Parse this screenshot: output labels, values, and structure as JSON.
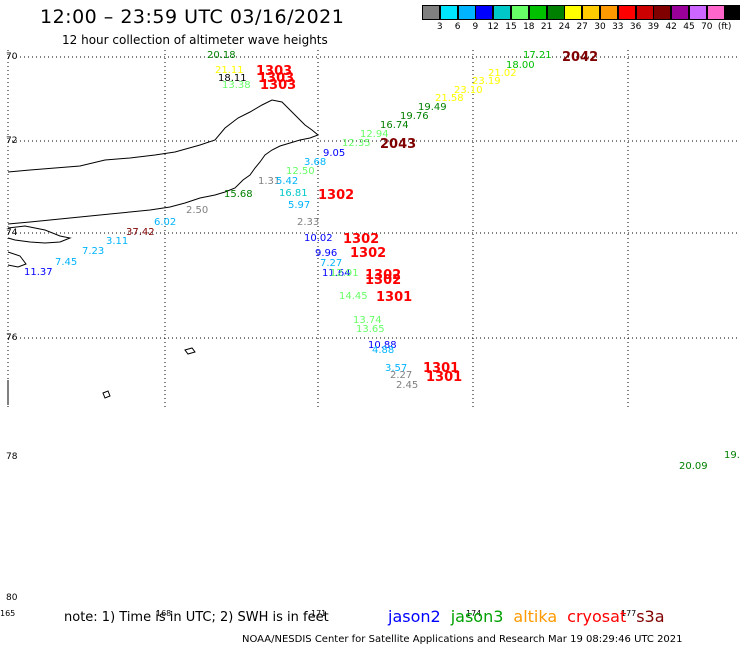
{
  "header": {
    "title": "12:00 – 23:59 UTC 03/16/2021",
    "subtitle": "12 hour collection of altimeter wave heights"
  },
  "scale": {
    "colors": [
      "#808080",
      "#00e5ff",
      "#00b4ff",
      "#0000ff",
      "#00c8c8",
      "#66ff66",
      "#00c000",
      "#008000",
      "#ffff00",
      "#ffcc00",
      "#ff9900",
      "#ff0000",
      "#cc0000",
      "#800000",
      "#990099",
      "#cc66ff",
      "#ff66cc",
      "#000000"
    ],
    "labels": [
      "3",
      "6",
      "9",
      "12",
      "15",
      "18",
      "21",
      "24",
      "27",
      "30",
      "33",
      "36",
      "39",
      "42",
      "45",
      "70",
      "(ft)"
    ]
  },
  "axes": {
    "lat_labels": [
      "70",
      "72",
      "74",
      "76",
      "78",
      "80"
    ],
    "lon_labels": [
      "165",
      "168",
      "171",
      "174",
      "177"
    ]
  },
  "observations": [
    {
      "text": "20.18",
      "color": "#008000"
    },
    {
      "text": "21.11",
      "color": "#ffff00"
    },
    {
      "text": "18.11",
      "color": "#000000"
    },
    {
      "text": "13.38",
      "color": "#66ff66"
    },
    {
      "text": "17.21",
      "color": "#00c000"
    },
    {
      "text": "18.00",
      "color": "#00c000"
    },
    {
      "text": "21.02",
      "color": "#ffff00"
    },
    {
      "text": "23.19",
      "color": "#ffff00"
    },
    {
      "text": "23.10",
      "color": "#ffff00"
    },
    {
      "text": "21.58",
      "color": "#ffff00"
    },
    {
      "text": "19.49",
      "color": "#008000"
    },
    {
      "text": "19.76",
      "color": "#008000"
    },
    {
      "text": "16.74",
      "color": "#008000"
    },
    {
      "text": "12.94",
      "color": "#66ff66"
    },
    {
      "text": "12.35",
      "color": "#66ff66"
    },
    {
      "text": "9.05",
      "color": "#0000ff"
    },
    {
      "text": "3.68",
      "color": "#00b4ff"
    },
    {
      "text": "12.50",
      "color": "#66ff66"
    },
    {
      "text": "1.31",
      "color": "#808080"
    },
    {
      "text": "5.42",
      "color": "#00b4ff"
    },
    {
      "text": "15.68",
      "color": "#008000"
    },
    {
      "text": "16.81",
      "color": "#00c8c8"
    },
    {
      "text": "5.97",
      "color": "#00b4ff"
    },
    {
      "text": "2.50",
      "color": "#808080"
    },
    {
      "text": "6.02",
      "color": "#00b4ff"
    },
    {
      "text": "2.33",
      "color": "#808080"
    },
    {
      "text": "37.42",
      "color": "#800000"
    },
    {
      "text": "10.02",
      "color": "#0000ff"
    },
    {
      "text": "3.11",
      "color": "#00b4ff"
    },
    {
      "text": "7.23",
      "color": "#00b4ff"
    },
    {
      "text": "7.45",
      "color": "#00b4ff"
    },
    {
      "text": "11.37",
      "color": "#0000ff"
    },
    {
      "text": "9.96",
      "color": "#0000ff"
    },
    {
      "text": "7.27",
      "color": "#00b4ff"
    },
    {
      "text": "11.64",
      "color": "#0000ff"
    },
    {
      "text": "12.91",
      "color": "#66ff66"
    },
    {
      "text": "14.45",
      "color": "#66ff66"
    },
    {
      "text": "13.74",
      "color": "#66ff66"
    },
    {
      "text": "13.65",
      "color": "#66ff66"
    },
    {
      "text": "10.88",
      "color": "#0000ff"
    },
    {
      "text": "4.88",
      "color": "#00b4ff"
    },
    {
      "text": "3.57",
      "color": "#00b4ff"
    },
    {
      "text": "2.27",
      "color": "#808080"
    },
    {
      "text": "2.45",
      "color": "#808080"
    },
    {
      "text": "19.",
      "color": "#008000"
    },
    {
      "text": "20.09",
      "color": "#008000"
    }
  ],
  "times": [
    {
      "text": "1303",
      "color": "#ff0000"
    },
    {
      "text": "1303",
      "color": "#ff0000"
    },
    {
      "text": "1303",
      "color": "#ff0000"
    },
    {
      "text": "2042",
      "color": "#800000"
    },
    {
      "text": "2043",
      "color": "#800000"
    },
    {
      "text": "1302",
      "color": "#ff0000"
    },
    {
      "text": "1302",
      "color": "#ff0000"
    },
    {
      "text": "1302",
      "color": "#ff0000"
    },
    {
      "text": "1302",
      "color": "#ff0000"
    },
    {
      "text": "1302",
      "color": "#ff0000"
    },
    {
      "text": "1301",
      "color": "#ff0000"
    },
    {
      "text": "1301",
      "color": "#ff0000"
    },
    {
      "text": "1301",
      "color": "#ff0000"
    }
  ],
  "footer": {
    "note": "note:  1) Time is in UTC;  2) SWH is in feet",
    "satellites": [
      {
        "name": "jason2",
        "color": "#0000ff"
      },
      {
        "name": "jason3",
        "color": "#00a000"
      },
      {
        "name": "altika",
        "color": "#ff9900"
      },
      {
        "name": "cryosat",
        "color": "#ff0000"
      },
      {
        "name": "s3a",
        "color": "#800000"
      }
    ],
    "credit": "NOAA/NESDIS Center for Satellite Applications and Research    Mar 19 08:29:46 UTC 2021"
  }
}
